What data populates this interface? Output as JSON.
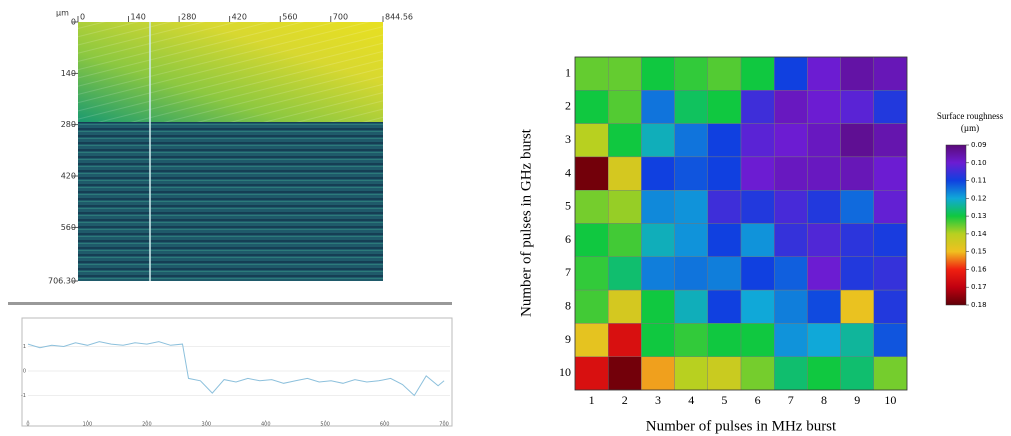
{
  "chart_data": [
    {
      "type": "image",
      "unit": "µm",
      "xlim": [
        0,
        844.56
      ],
      "xticks": [
        0,
        140,
        280,
        420,
        560,
        700,
        844.56
      ],
      "ylim": [
        0,
        706.3
      ],
      "yticks": [
        0,
        140,
        280,
        420,
        560,
        {
          "value": 706.3,
          "label": "706.30"
        }
      ]
    },
    {
      "type": "line",
      "color": "#8cc0dc",
      "grid": true,
      "x": [
        0,
        20,
        40,
        60,
        80,
        100,
        120,
        140,
        160,
        180,
        200,
        220,
        240,
        260,
        270,
        290,
        310,
        330,
        350,
        370,
        390,
        410,
        430,
        450,
        470,
        490,
        510,
        530,
        550,
        570,
        590,
        610,
        630,
        650,
        670,
        690,
        700
      ],
      "values": [
        1.1,
        0.95,
        1.05,
        1.0,
        1.15,
        1.05,
        1.2,
        1.1,
        1.05,
        1.15,
        1.1,
        1.2,
        1.05,
        1.1,
        -0.3,
        -0.4,
        -0.9,
        -0.35,
        -0.45,
        -0.3,
        -0.4,
        -0.35,
        -0.5,
        -0.4,
        -0.3,
        -0.45,
        -0.4,
        -0.5,
        -0.35,
        -0.45,
        -0.4,
        -0.3,
        -0.55,
        -1.0,
        -0.2,
        -0.6,
        -0.4
      ],
      "xlim": [
        0,
        710
      ],
      "xticks": [
        0,
        100,
        200,
        300,
        400,
        500,
        600,
        700
      ],
      "ylim": [
        -2,
        2
      ],
      "yticks": [
        -1,
        0,
        1
      ]
    },
    {
      "type": "heatmap",
      "x_label": "Number of pulses in MHz burst",
      "y_label": "Number of pulses in GHz burst",
      "categories": [
        "1",
        "2",
        "3",
        "4",
        "5",
        "6",
        "7",
        "8",
        "9",
        "10"
      ],
      "y_categories": [
        "1",
        "2",
        "3",
        "4",
        "5",
        "6",
        "7",
        "8",
        "9",
        "10"
      ],
      "values": [
        [
          0.135,
          0.135,
          0.13,
          0.132,
          0.134,
          0.13,
          0.11,
          0.1,
          0.095,
          0.097
        ],
        [
          0.13,
          0.134,
          0.115,
          0.128,
          0.13,
          0.105,
          0.098,
          0.1,
          0.102,
          0.108
        ],
        [
          0.14,
          0.13,
          0.122,
          0.115,
          0.11,
          0.102,
          0.1,
          0.098,
          0.093,
          0.096
        ],
        [
          0.178,
          0.145,
          0.11,
          0.112,
          0.11,
          0.1,
          0.098,
          0.098,
          0.097,
          0.1
        ],
        [
          0.136,
          0.138,
          0.117,
          0.118,
          0.105,
          0.108,
          0.104,
          0.108,
          0.114,
          0.101
        ],
        [
          0.13,
          0.133,
          0.122,
          0.118,
          0.11,
          0.118,
          0.106,
          0.103,
          0.107,
          0.109
        ],
        [
          0.132,
          0.127,
          0.116,
          0.115,
          0.116,
          0.11,
          0.113,
          0.1,
          0.108,
          0.106
        ],
        [
          0.133,
          0.145,
          0.13,
          0.122,
          0.11,
          0.12,
          0.116,
          0.111,
          0.149,
          0.108
        ],
        [
          0.148,
          0.165,
          0.13,
          0.132,
          0.13,
          0.13,
          0.118,
          0.12,
          0.124,
          0.112
        ],
        [
          0.165,
          0.178,
          0.152,
          0.14,
          0.143,
          0.136,
          0.127,
          0.13,
          0.127,
          0.136
        ]
      ],
      "zlim": [
        0.09,
        0.18
      ],
      "colorscale": [
        "#5a0a78",
        "#6c1cd2",
        "#1040e0",
        "#10a8d8",
        "#10c840",
        "#b8d020",
        "#f0c020",
        "#f02010",
        "#c00010",
        "#600008"
      ],
      "colorbar_title": "Surface roughness",
      "colorbar_unit": "(µm)",
      "colorbar_ticks": [
        0.09,
        {
          "value": 0.1,
          "label": "0.10"
        },
        0.11,
        0.12,
        0.13,
        0.14,
        0.15,
        0.16,
        0.17,
        0.18
      ]
    }
  ]
}
